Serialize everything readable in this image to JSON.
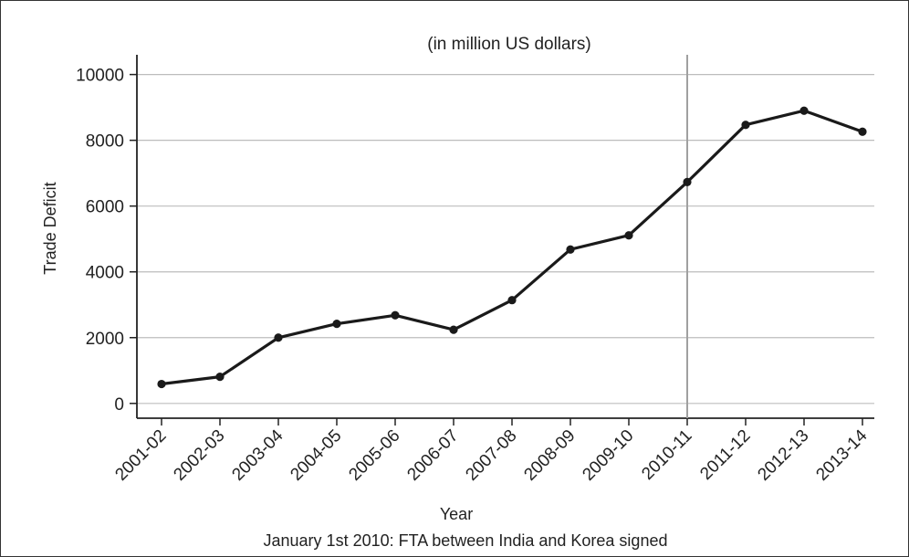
{
  "chart_data": {
    "type": "line",
    "title": "",
    "subtitle": "(in million US dollars)",
    "xlabel": "Year",
    "ylabel": "Trade Deficit",
    "caption": "January 1st 2010: FTA between India and Korea signed",
    "categories": [
      "2001-02",
      "2002-03",
      "2003-04",
      "2004-05",
      "2005-06",
      "2006-07",
      "2007-08",
      "2008-09",
      "2009-10",
      "2010-11",
      "2011-12",
      "2012-13",
      "2013-14"
    ],
    "series": [
      {
        "values": [
          590,
          810,
          2000,
          2420,
          2680,
          2240,
          3140,
          4680,
          5110,
          6730,
          8470,
          8900,
          8260
        ]
      }
    ],
    "yticks": [
      0,
      2000,
      4000,
      6000,
      8000,
      10000
    ],
    "ylim": [
      -450,
      10600
    ],
    "grid": "horizontal",
    "reference_line": {
      "category": "2010-11"
    },
    "colors": {
      "line": "#1a1a1a",
      "grid": "#bdbdbd",
      "reference": "#a0a0a0"
    }
  }
}
